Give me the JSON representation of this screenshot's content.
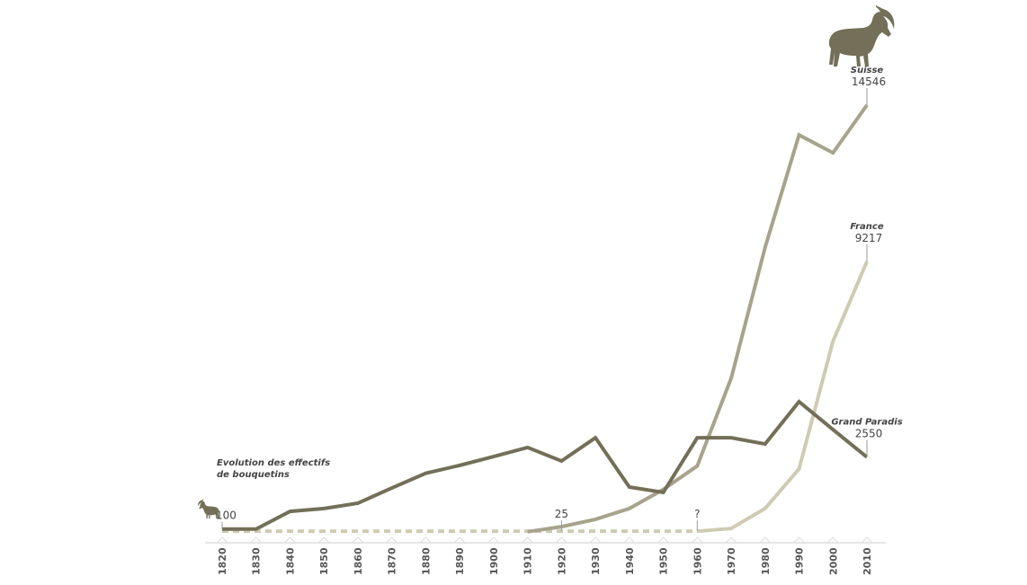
{
  "chart_data": {
    "type": "line",
    "title": "Evolution des effectifs de bouquetins",
    "x": [
      1820,
      1830,
      1840,
      1850,
      1860,
      1870,
      1880,
      1890,
      1900,
      1910,
      1920,
      1930,
      1940,
      1950,
      1960,
      1970,
      1980,
      1990,
      2000,
      2010
    ],
    "series": [
      {
        "name": "Grand Paradis",
        "color": "#736f58",
        "style": "solid",
        "values": [
          100,
          100,
          700,
          800,
          980,
          1500,
          2000,
          2270,
          2570,
          2880,
          2420,
          3210,
          1530,
          1350,
          3210,
          3210,
          3000,
          4440,
          3490,
          2550
        ]
      },
      {
        "name": "Suisse",
        "color": "#a7a38c",
        "style": "solid",
        "values": [
          null,
          null,
          null,
          null,
          null,
          null,
          null,
          null,
          null,
          10,
          180,
          430,
          800,
          1450,
          2250,
          5240,
          9700,
          13530,
          12920,
          14546
        ]
      },
      {
        "name": "France",
        "color": "#cfcbb2",
        "style": "dashed-until-1960",
        "values": [
          25,
          25,
          25,
          25,
          25,
          25,
          25,
          25,
          25,
          25,
          25,
          25,
          25,
          25,
          25,
          120,
          800,
          2150,
          6500,
          9217
        ]
      }
    ],
    "annotations": [
      {
        "text": "100",
        "x": 1820,
        "series": "Grand Paradis"
      },
      {
        "text": "25",
        "x": 1920,
        "series": "France"
      },
      {
        "text": "?",
        "x": 1960,
        "series": "France"
      },
      {
        "name": "Suisse",
        "text": "14546",
        "x": 2010
      },
      {
        "name": "France",
        "text": "9217",
        "x": 2010
      },
      {
        "name": "Grand Paradis",
        "text": "2550",
        "x": 2010
      }
    ],
    "ylim": [
      0,
      14546
    ],
    "xlabel": "",
    "ylabel": "",
    "grid": false,
    "icons": [
      "ibex-icon-small",
      "ibex-icon-large"
    ]
  }
}
